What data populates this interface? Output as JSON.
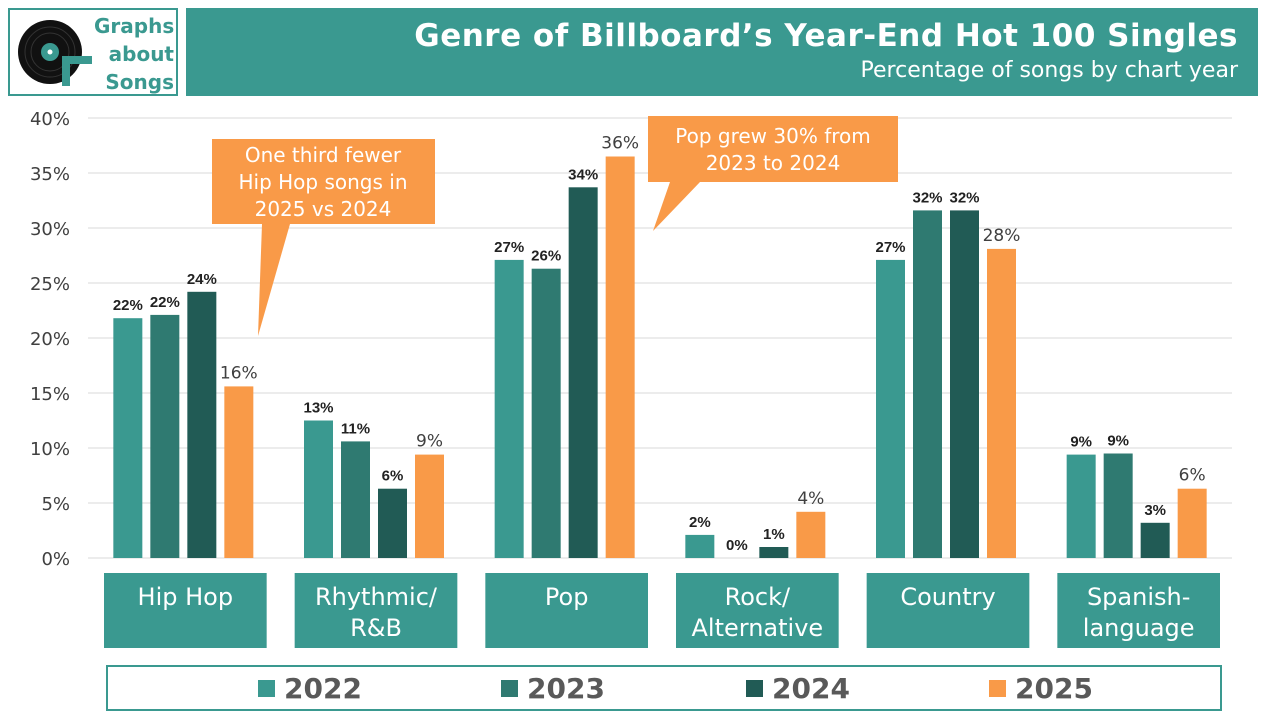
{
  "logo": {
    "lines": [
      "Graphs",
      "about",
      "Songs"
    ]
  },
  "header": {
    "title": "Genre of Billboard’s Year-End Hot 100 Singles",
    "subtitle": "Percentage of songs by chart year"
  },
  "colors": {
    "teal": "#3a9990",
    "c2022": "#3a9990",
    "c2023": "#2f7a71",
    "c2024": "#215b55",
    "c2025": "#f99a48",
    "callout": "#f99a48"
  },
  "chart_data": {
    "type": "bar",
    "title": "Genre of Billboard’s Year-End Hot 100 Singles",
    "subtitle": "Percentage of songs by chart year",
    "categories": [
      "Hip Hop",
      "Rhythmic/\nR&B",
      "Pop",
      "Rock/\nAlternative",
      "Country",
      "Spanish-\nlanguage"
    ],
    "series": [
      {
        "name": "2022",
        "color": "#3a9990",
        "values": [
          21.8,
          12.5,
          27.1,
          2.1,
          27.1,
          9.4
        ],
        "labels": [
          "22%",
          "13%",
          "27%",
          "2%",
          "27%",
          "9%"
        ]
      },
      {
        "name": "2023",
        "color": "#2f7a71",
        "values": [
          22.1,
          10.6,
          26.3,
          0.0,
          31.6,
          9.5
        ],
        "labels": [
          "22%",
          "11%",
          "26%",
          "0%",
          "32%",
          "9%"
        ]
      },
      {
        "name": "2024",
        "color": "#215b55",
        "values": [
          24.2,
          6.3,
          33.7,
          1.0,
          31.6,
          3.2
        ],
        "labels": [
          "24%",
          "6%",
          "34%",
          "1%",
          "32%",
          "3%"
        ]
      },
      {
        "name": "2025",
        "color": "#f99a48",
        "values": [
          15.6,
          9.4,
          36.5,
          4.2,
          28.1,
          6.3
        ],
        "labels": [
          "16%",
          "9%",
          "36%",
          "4%",
          "28%",
          "6%"
        ]
      }
    ],
    "ylim": [
      0,
      40
    ],
    "yticks": [
      "0%",
      "5%",
      "10%",
      "15%",
      "20%",
      "25%",
      "30%",
      "35%",
      "40%"
    ],
    "grid": true,
    "legend": "bottom",
    "annotations": [
      {
        "text": "One third fewer Hip Hop songs in 2025 vs 2024",
        "lines": [
          "One third fewer",
          "Hip Hop songs in",
          "2025 vs 2024"
        ],
        "target": "Hip Hop 2025"
      },
      {
        "text": "Pop grew 30% from 2023 to 2024",
        "lines": [
          "Pop grew 30% from",
          "2023 to 2024"
        ],
        "target": "Pop 2024"
      }
    ]
  }
}
